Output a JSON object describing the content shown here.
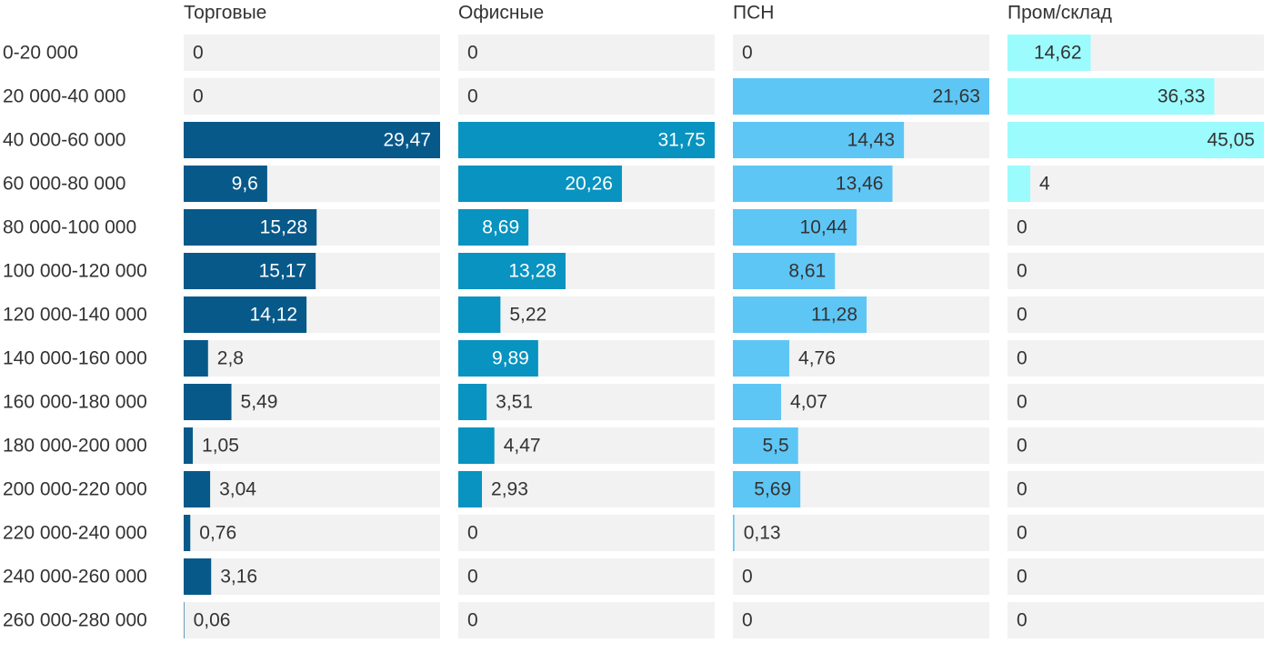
{
  "chart_data": {
    "type": "bar",
    "categories": [
      "0-20 000",
      "20 000-40 000",
      "40 000-60 000",
      "60 000-80 000",
      "80 000-100 000",
      "100 000-120 000",
      "120 000-140 000",
      "140 000-160 000",
      "160 000-180 000",
      "180 000-200 000",
      "200 000-220 000",
      "220 000-240 000",
      "240 000-260 000",
      "260 000-280 000"
    ],
    "series": [
      {
        "name": "Торговые",
        "color": "#07598a",
        "label_color": "#ffffff",
        "xlim": [
          0,
          29.47
        ],
        "values": [
          0,
          0,
          29.47,
          9.6,
          15.28,
          15.17,
          14.12,
          2.8,
          5.49,
          1.05,
          3.04,
          0.76,
          3.16,
          0.06
        ],
        "value_labels": [
          "0",
          "0",
          "29,47",
          "9,6",
          "15,28",
          "15,17",
          "14,12",
          "2,8",
          "5,49",
          "1,05",
          "3,04",
          "0,76",
          "3,16",
          "0,06"
        ]
      },
      {
        "name": "Офисные",
        "color": "#0893c0",
        "label_color": "#ffffff",
        "xlim": [
          0,
          31.75
        ],
        "values": [
          0,
          0,
          31.75,
          20.26,
          8.69,
          13.28,
          5.22,
          9.89,
          3.51,
          4.47,
          2.93,
          0,
          0,
          0
        ],
        "value_labels": [
          "0",
          "0",
          "31,75",
          "20,26",
          "8,69",
          "13,28",
          "5,22",
          "9,89",
          "3,51",
          "4,47",
          "2,93",
          "0",
          "0",
          "0"
        ]
      },
      {
        "name": "ПСН",
        "color": "#5ec6f4",
        "label_color": "#333333",
        "xlim": [
          0,
          21.63
        ],
        "values": [
          0,
          21.63,
          14.43,
          13.46,
          10.44,
          8.61,
          11.28,
          4.76,
          4.07,
          5.5,
          5.69,
          0.13,
          0,
          0
        ],
        "value_labels": [
          "0",
          "21,63",
          "14,43",
          "13,46",
          "10,44",
          "8,61",
          "11,28",
          "4,76",
          "4,07",
          "5,5",
          "5,69",
          "0,13",
          "0",
          "0"
        ]
      },
      {
        "name": "Пром/склад",
        "color": "#9cfbfd",
        "label_color": "#333333",
        "xlim": [
          0,
          45.05
        ],
        "values": [
          14.62,
          36.33,
          45.05,
          4,
          0,
          0,
          0,
          0,
          0,
          0,
          0,
          0,
          0,
          0
        ],
        "value_labels": [
          "14,62",
          "36,33",
          "45,05",
          "4",
          "0",
          "0",
          "0",
          "0",
          "0",
          "0",
          "0",
          "0",
          "0",
          "0"
        ]
      }
    ]
  }
}
